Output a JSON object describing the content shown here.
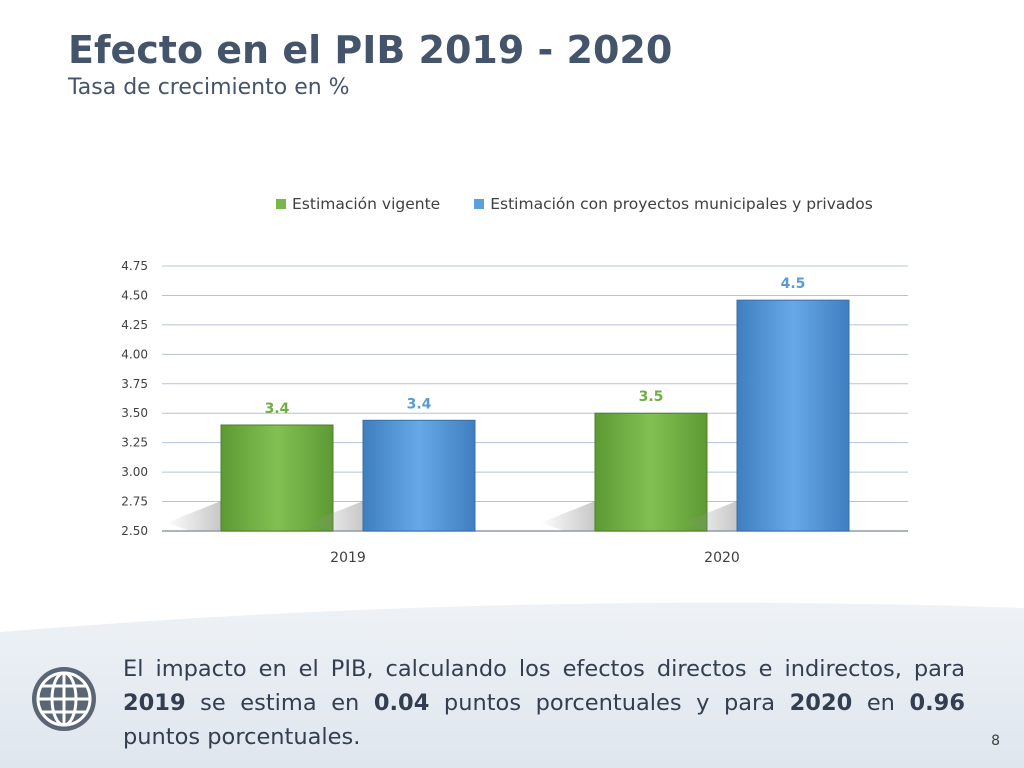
{
  "slide": {
    "title": "Efecto en el PIB 2019 - 2020",
    "subtitle": "Tasa de crecimiento en %",
    "page_number": "8"
  },
  "footer": {
    "t1": "El impacto en el PIB, calculando los efectos directos e indirectos, para ",
    "b1": "2019",
    "t2": " se estima en ",
    "b2": "0.04",
    "t3": " puntos porcentuales y para ",
    "b3": "2020",
    "t4": " en ",
    "b4": "0.96",
    "t5": " puntos porcentuales.",
    "icon": "globe-icon"
  },
  "colors": {
    "title": "#44546a",
    "series1": "#78b84a",
    "series2": "#5b9fdf",
    "label1": "#70ad47",
    "label2": "#5b9bd5",
    "grid": "#b4c4d4"
  },
  "chart_data": {
    "type": "bar",
    "categories": [
      "2019",
      "2020"
    ],
    "series": [
      {
        "name": "Estimación vigente",
        "values": [
          3.4,
          3.5
        ],
        "labels": [
          "3.4",
          "3.5"
        ]
      },
      {
        "name": "Estimación con proyectos municipales y privados",
        "values": [
          3.44,
          4.46
        ],
        "labels": [
          "3.4",
          "4.5"
        ]
      }
    ],
    "ylim": [
      2.5,
      4.75
    ],
    "yticks": [
      "2.50",
      "2.75",
      "3.00",
      "3.25",
      "3.50",
      "3.75",
      "4.00",
      "4.25",
      "4.50",
      "4.75"
    ],
    "legend": "top",
    "grid": true
  }
}
